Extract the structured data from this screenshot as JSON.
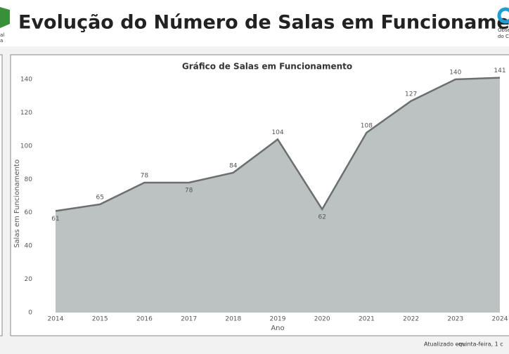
{
  "header": {
    "title": "Evolução do Número de Salas em Funcionamento",
    "left_logo_lines": [
      "al",
      "a"
    ],
    "right_logo_lines": [
      "Obse",
      "do Ci"
    ]
  },
  "footer": {
    "updated_label": "Atualizado em:",
    "updated_value": "quinta-feira, 1 c"
  },
  "chart_data": {
    "type": "area",
    "title": "Gráfico de Salas em Funcionamento",
    "x_label": "Ano",
    "y_label": "Salas em Funcionamento",
    "x": [
      2014,
      2015,
      2016,
      2017,
      2018,
      2019,
      2020,
      2021,
      2022,
      2023,
      2024
    ],
    "values": [
      61,
      65,
      78,
      78,
      84,
      104,
      62,
      108,
      127,
      140,
      141
    ],
    "xlim": [
      2014,
      2024
    ],
    "xticks": [
      2014,
      2015,
      2016,
      2017,
      2018,
      2019,
      2020,
      2021,
      2022,
      2023,
      2024
    ],
    "ylim": [
      0,
      140
    ],
    "yticks": [
      0,
      20,
      40,
      60,
      80,
      100,
      120,
      140
    ],
    "color": "#6b706f",
    "fill": "#bcc2c2",
    "grid": false
  }
}
